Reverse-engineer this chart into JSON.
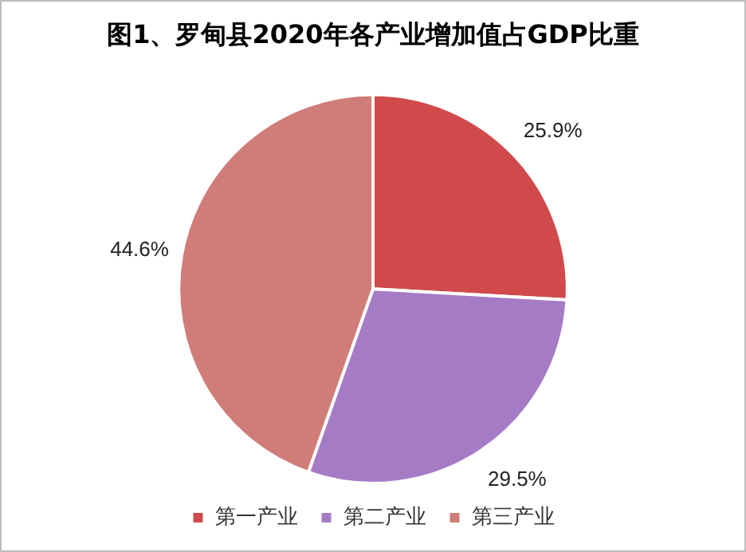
{
  "chart_data": {
    "type": "pie",
    "title": "图1、罗甸县2020年各产业增加值占GDP比重",
    "categories": [
      "第一产业",
      "第二产业",
      "第三产业"
    ],
    "values": [
      25.9,
      29.5,
      44.6
    ],
    "colors": [
      "#d04a4b",
      "#a57bc6",
      "#d07c78"
    ],
    "value_labels": [
      "25.9%",
      "29.5%",
      "44.6%"
    ],
    "legend": "bottom"
  }
}
